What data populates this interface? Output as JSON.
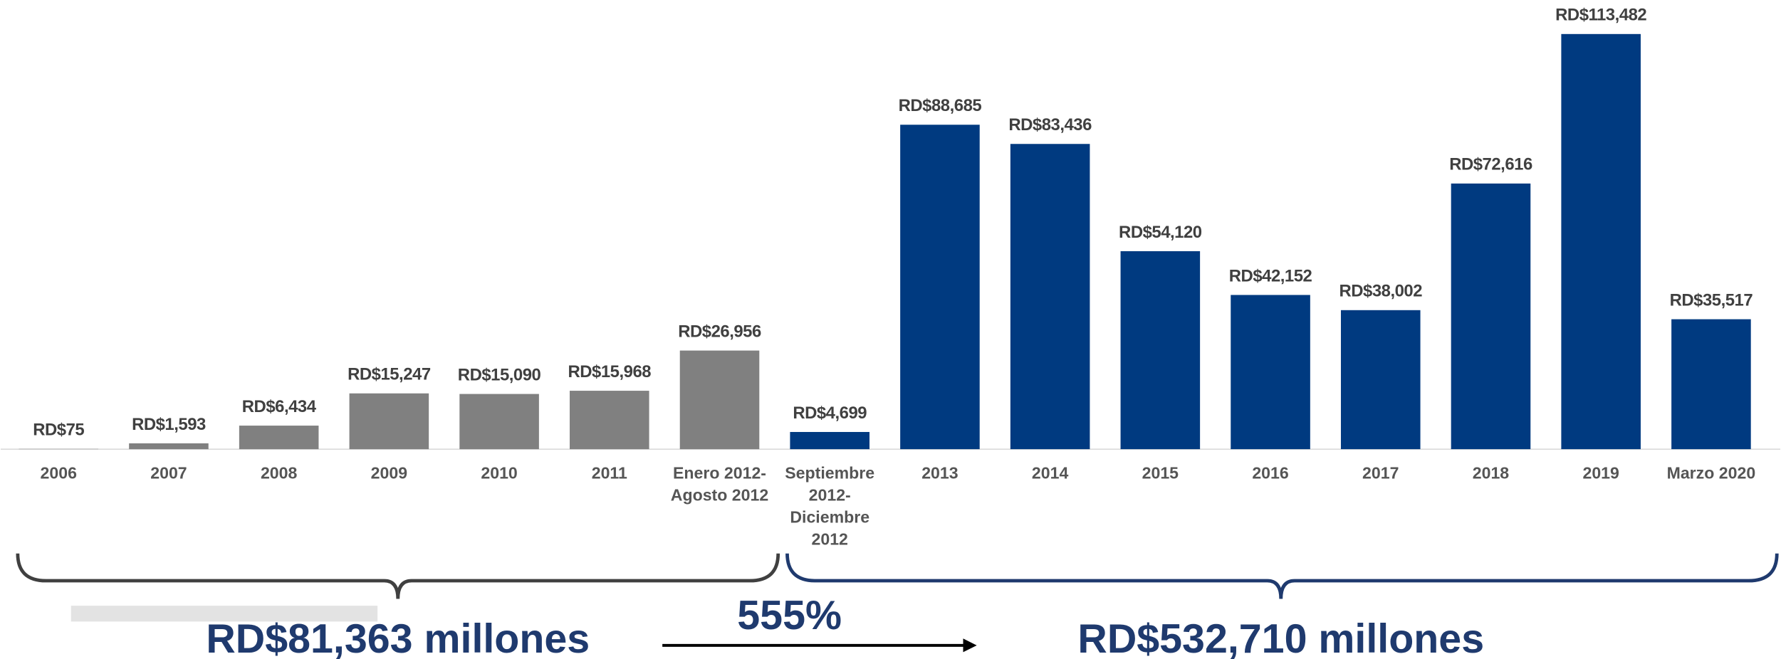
{
  "chart_data": {
    "type": "bar",
    "categories": [
      [
        "2006"
      ],
      [
        "2007"
      ],
      [
        "2008"
      ],
      [
        "2009"
      ],
      [
        "2010"
      ],
      [
        "2011"
      ],
      [
        "Enero 2012-",
        "Agosto 2012"
      ],
      [
        "Septiembre",
        "2012-",
        "Diciembre",
        "2012"
      ],
      [
        "2013"
      ],
      [
        "2014"
      ],
      [
        "2015"
      ],
      [
        "2016"
      ],
      [
        "2017"
      ],
      [
        "2018"
      ],
      [
        "2019"
      ],
      [
        "Marzo 2020"
      ]
    ],
    "values": [
      75,
      1593,
      6434,
      15247,
      15090,
      15968,
      26956,
      4699,
      88685,
      83436,
      54120,
      42152,
      38002,
      72616,
      113482,
      35517
    ],
    "value_labels": [
      "RD$75",
      "RD$1,593",
      "RD$6,434",
      "RD$15,247",
      "RD$15,090",
      "RD$15,968",
      "RD$26,956",
      "RD$4,699",
      "RD$88,685",
      "RD$83,436",
      "RD$54,120",
      "RD$42,152",
      "RD$38,002",
      "RD$72,616",
      "RD$113,482",
      "RD$35,517"
    ],
    "colors": [
      "#808080",
      "#808080",
      "#808080",
      "#808080",
      "#808080",
      "#808080",
      "#808080",
      "#003a80",
      "#003a80",
      "#003a80",
      "#003a80",
      "#003a80",
      "#003a80",
      "#003a80",
      "#003a80",
      "#003a80"
    ],
    "annotations": {
      "left_total": "RD$81,363 millones",
      "growth": "555%",
      "right_total": "RD$532,710 millones"
    }
  }
}
